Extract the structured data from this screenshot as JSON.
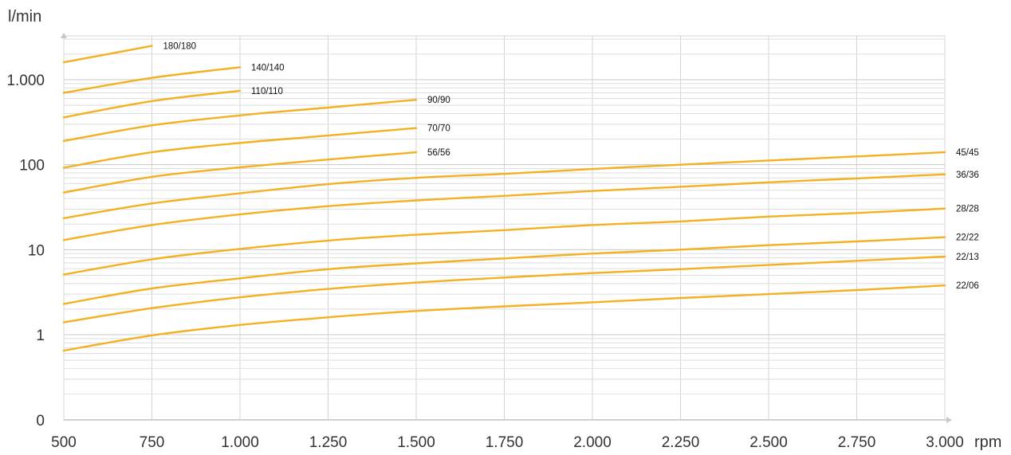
{
  "chart_data": {
    "type": "line",
    "title": "",
    "xlabel": "rpm",
    "ylabel": "l/min",
    "y_scale": "log",
    "grid": true,
    "line_color": "#f4b020",
    "xlim": [
      500,
      3000
    ],
    "x_ticks": [
      500,
      750,
      1000,
      1250,
      1500,
      1750,
      2000,
      2250,
      2500,
      2750,
      3000
    ],
    "x_tick_labels": [
      "500",
      "750",
      "1.000",
      "1.250",
      "1.500",
      "1.750",
      "2.000",
      "2.250",
      "2.500",
      "2.750",
      "3.000"
    ],
    "y_ticks": [
      1,
      10,
      100,
      1000
    ],
    "y_tick_labels": [
      "1",
      "10",
      "100",
      "1.000"
    ],
    "y_zero_label": "0",
    "series": [
      {
        "name": "180/180",
        "x": [
          500,
          750
        ],
        "y": [
          1600,
          2500
        ]
      },
      {
        "name": "140/140",
        "x": [
          500,
          750,
          1000
        ],
        "y": [
          700,
          1050,
          1400
        ]
      },
      {
        "name": "110/110",
        "x": [
          500,
          750,
          1000
        ],
        "y": [
          360,
          560,
          740
        ]
      },
      {
        "name": "90/90",
        "x": [
          500,
          750,
          1000,
          1250,
          1500
        ],
        "y": [
          190,
          290,
          380,
          470,
          580
        ]
      },
      {
        "name": "70/70",
        "x": [
          500,
          750,
          1000,
          1250,
          1500
        ],
        "y": [
          92,
          140,
          180,
          220,
          270
        ]
      },
      {
        "name": "56/56",
        "x": [
          500,
          750,
          1000,
          1250,
          1500
        ],
        "y": [
          47,
          72,
          93,
          115,
          140
        ]
      },
      {
        "name": "45/45",
        "x": [
          500,
          750,
          1000,
          1250,
          1500,
          1750,
          2000,
          2250,
          2500,
          2750,
          3000
        ],
        "y": [
          23.5,
          35,
          46,
          59,
          70,
          78,
          89,
          100,
          112,
          125,
          140
        ]
      },
      {
        "name": "36/36",
        "x": [
          500,
          750,
          1000,
          1250,
          1500,
          1750,
          2000,
          2250,
          2500,
          2750,
          3000
        ],
        "y": [
          13,
          19.5,
          26,
          32.5,
          38,
          43,
          49,
          55,
          62,
          69,
          77
        ]
      },
      {
        "name": "28/28",
        "x": [
          500,
          750,
          1000,
          1250,
          1500,
          1750,
          2000,
          2250,
          2500,
          2750,
          3000
        ],
        "y": [
          5.1,
          7.7,
          10.2,
          12.8,
          15,
          17,
          19.5,
          21.5,
          24.5,
          27,
          30.5
        ]
      },
      {
        "name": "22/22",
        "x": [
          500,
          750,
          1000,
          1250,
          1500,
          1750,
          2000,
          2250,
          2500,
          2750,
          3000
        ],
        "y": [
          2.3,
          3.5,
          4.6,
          5.9,
          6.9,
          7.9,
          9,
          10,
          11.3,
          12.5,
          14
        ]
      },
      {
        "name": "22/13",
        "x": [
          500,
          750,
          1000,
          1250,
          1500,
          1750,
          2000,
          2250,
          2500,
          2750,
          3000
        ],
        "y": [
          1.4,
          2.05,
          2.75,
          3.45,
          4.1,
          4.7,
          5.3,
          5.9,
          6.6,
          7.4,
          8.3
        ]
      },
      {
        "name": "22/06",
        "x": [
          500,
          750,
          1000,
          1250,
          1500,
          1750,
          2000,
          2250,
          2500,
          2750,
          3000
        ],
        "y": [
          0.65,
          0.98,
          1.3,
          1.6,
          1.9,
          2.15,
          2.4,
          2.7,
          3.0,
          3.35,
          3.8
        ]
      }
    ]
  }
}
